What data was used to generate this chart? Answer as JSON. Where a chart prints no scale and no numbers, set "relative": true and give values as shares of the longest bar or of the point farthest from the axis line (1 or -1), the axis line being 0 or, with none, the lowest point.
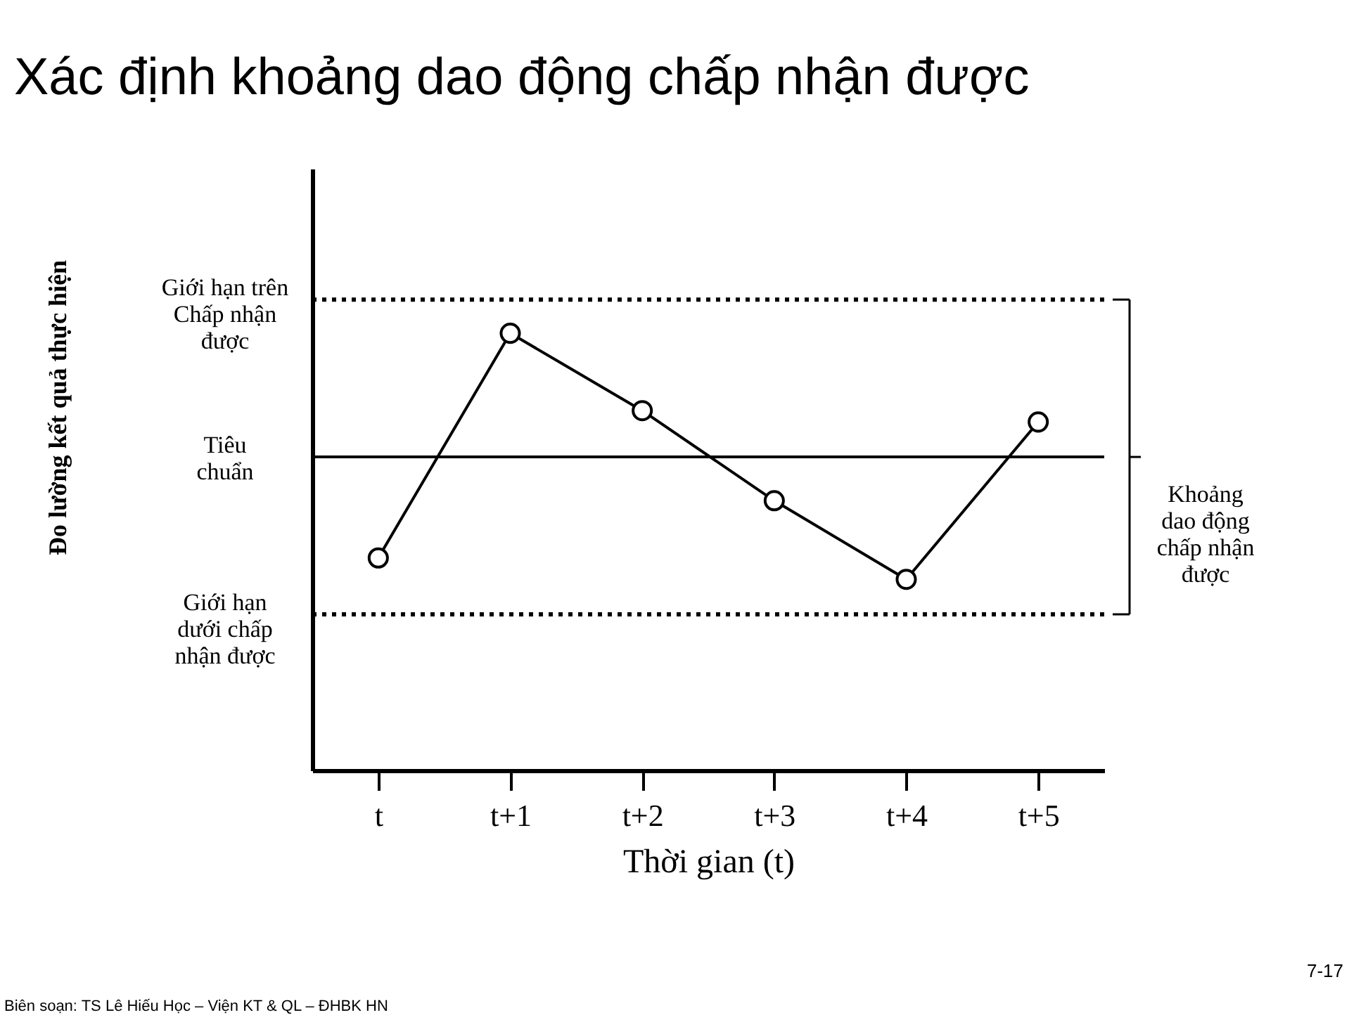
{
  "chart_data": {
    "type": "line",
    "relative": true,
    "title": "Xác định khoảng dao động chấp nhận được",
    "xlabel": "Thời gian (t)",
    "categories": [
      "t",
      "t+1",
      "t+2",
      "t+3",
      "t+4",
      "t+5"
    ],
    "series": [
      {
        "color": "#000000",
        "values": [
          0.486,
          1,
          0.823,
          0.617,
          0.437,
          0.797
        ]
      }
    ],
    "marker": "circle",
    "line_style": "solid",
    "grid": false,
    "ref_lines": [
      {
        "axis": "y",
        "value": 1.077,
        "label": "Giới hạn trên\nChấp nhận\nđược",
        "line_style": "dotted",
        "color": "#000000"
      },
      {
        "axis": "y",
        "value": 0.717,
        "label": "Tiêu\nchuẩn",
        "line_style": "solid",
        "color": "#000000"
      },
      {
        "axis": "y",
        "value": 0.357,
        "label": "Giới hạn\ndưới chấp\nnhận được",
        "line_style": "dotted",
        "color": "#000000"
      }
    ],
    "annotations": [
      "Biên soạn: TS Lê Hiếu Học – Viện KT & QL – ĐHBK HN",
      "7-17",
      "Khoảng\ndao động\nchấp nhận\nđược",
      "Đo lường kết quả thực hiện"
    ]
  }
}
